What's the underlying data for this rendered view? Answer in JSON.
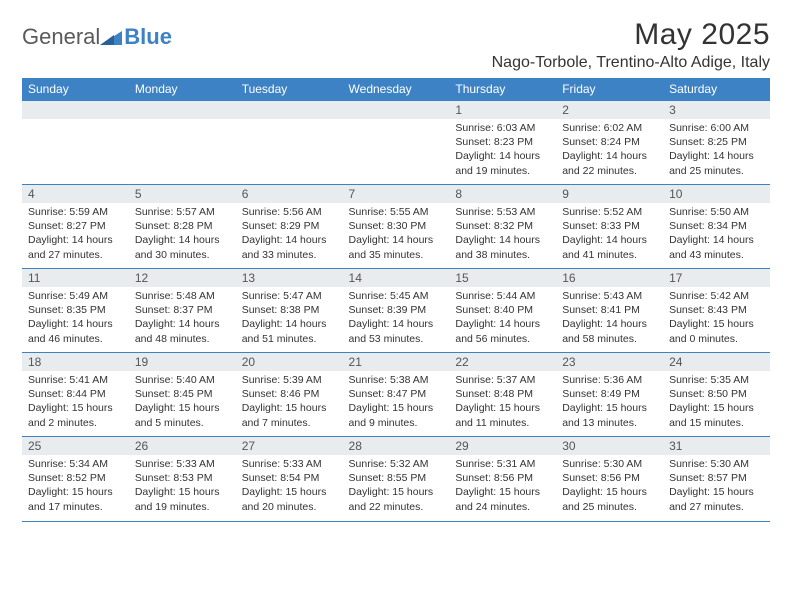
{
  "brand": {
    "part1": "General",
    "part2": "Blue"
  },
  "colors": {
    "accent": "#3d82c4",
    "header_text": "#ffffff",
    "daynum_bg": "#e9ecef",
    "text": "#333333"
  },
  "title": "May 2025",
  "location": "Nago-Torbole, Trentino-Alto Adige, Italy",
  "weekdays": [
    "Sunday",
    "Monday",
    "Tuesday",
    "Wednesday",
    "Thursday",
    "Friday",
    "Saturday"
  ],
  "weeks": [
    [
      null,
      null,
      null,
      null,
      {
        "n": "1",
        "sr": "Sunrise: 6:03 AM",
        "ss": "Sunset: 8:23 PM",
        "d1": "Daylight: 14 hours",
        "d2": "and 19 minutes."
      },
      {
        "n": "2",
        "sr": "Sunrise: 6:02 AM",
        "ss": "Sunset: 8:24 PM",
        "d1": "Daylight: 14 hours",
        "d2": "and 22 minutes."
      },
      {
        "n": "3",
        "sr": "Sunrise: 6:00 AM",
        "ss": "Sunset: 8:25 PM",
        "d1": "Daylight: 14 hours",
        "d2": "and 25 minutes."
      }
    ],
    [
      {
        "n": "4",
        "sr": "Sunrise: 5:59 AM",
        "ss": "Sunset: 8:27 PM",
        "d1": "Daylight: 14 hours",
        "d2": "and 27 minutes."
      },
      {
        "n": "5",
        "sr": "Sunrise: 5:57 AM",
        "ss": "Sunset: 8:28 PM",
        "d1": "Daylight: 14 hours",
        "d2": "and 30 minutes."
      },
      {
        "n": "6",
        "sr": "Sunrise: 5:56 AM",
        "ss": "Sunset: 8:29 PM",
        "d1": "Daylight: 14 hours",
        "d2": "and 33 minutes."
      },
      {
        "n": "7",
        "sr": "Sunrise: 5:55 AM",
        "ss": "Sunset: 8:30 PM",
        "d1": "Daylight: 14 hours",
        "d2": "and 35 minutes."
      },
      {
        "n": "8",
        "sr": "Sunrise: 5:53 AM",
        "ss": "Sunset: 8:32 PM",
        "d1": "Daylight: 14 hours",
        "d2": "and 38 minutes."
      },
      {
        "n": "9",
        "sr": "Sunrise: 5:52 AM",
        "ss": "Sunset: 8:33 PM",
        "d1": "Daylight: 14 hours",
        "d2": "and 41 minutes."
      },
      {
        "n": "10",
        "sr": "Sunrise: 5:50 AM",
        "ss": "Sunset: 8:34 PM",
        "d1": "Daylight: 14 hours",
        "d2": "and 43 minutes."
      }
    ],
    [
      {
        "n": "11",
        "sr": "Sunrise: 5:49 AM",
        "ss": "Sunset: 8:35 PM",
        "d1": "Daylight: 14 hours",
        "d2": "and 46 minutes."
      },
      {
        "n": "12",
        "sr": "Sunrise: 5:48 AM",
        "ss": "Sunset: 8:37 PM",
        "d1": "Daylight: 14 hours",
        "d2": "and 48 minutes."
      },
      {
        "n": "13",
        "sr": "Sunrise: 5:47 AM",
        "ss": "Sunset: 8:38 PM",
        "d1": "Daylight: 14 hours",
        "d2": "and 51 minutes."
      },
      {
        "n": "14",
        "sr": "Sunrise: 5:45 AM",
        "ss": "Sunset: 8:39 PM",
        "d1": "Daylight: 14 hours",
        "d2": "and 53 minutes."
      },
      {
        "n": "15",
        "sr": "Sunrise: 5:44 AM",
        "ss": "Sunset: 8:40 PM",
        "d1": "Daylight: 14 hours",
        "d2": "and 56 minutes."
      },
      {
        "n": "16",
        "sr": "Sunrise: 5:43 AM",
        "ss": "Sunset: 8:41 PM",
        "d1": "Daylight: 14 hours",
        "d2": "and 58 minutes."
      },
      {
        "n": "17",
        "sr": "Sunrise: 5:42 AM",
        "ss": "Sunset: 8:43 PM",
        "d1": "Daylight: 15 hours",
        "d2": "and 0 minutes."
      }
    ],
    [
      {
        "n": "18",
        "sr": "Sunrise: 5:41 AM",
        "ss": "Sunset: 8:44 PM",
        "d1": "Daylight: 15 hours",
        "d2": "and 2 minutes."
      },
      {
        "n": "19",
        "sr": "Sunrise: 5:40 AM",
        "ss": "Sunset: 8:45 PM",
        "d1": "Daylight: 15 hours",
        "d2": "and 5 minutes."
      },
      {
        "n": "20",
        "sr": "Sunrise: 5:39 AM",
        "ss": "Sunset: 8:46 PM",
        "d1": "Daylight: 15 hours",
        "d2": "and 7 minutes."
      },
      {
        "n": "21",
        "sr": "Sunrise: 5:38 AM",
        "ss": "Sunset: 8:47 PM",
        "d1": "Daylight: 15 hours",
        "d2": "and 9 minutes."
      },
      {
        "n": "22",
        "sr": "Sunrise: 5:37 AM",
        "ss": "Sunset: 8:48 PM",
        "d1": "Daylight: 15 hours",
        "d2": "and 11 minutes."
      },
      {
        "n": "23",
        "sr": "Sunrise: 5:36 AM",
        "ss": "Sunset: 8:49 PM",
        "d1": "Daylight: 15 hours",
        "d2": "and 13 minutes."
      },
      {
        "n": "24",
        "sr": "Sunrise: 5:35 AM",
        "ss": "Sunset: 8:50 PM",
        "d1": "Daylight: 15 hours",
        "d2": "and 15 minutes."
      }
    ],
    [
      {
        "n": "25",
        "sr": "Sunrise: 5:34 AM",
        "ss": "Sunset: 8:52 PM",
        "d1": "Daylight: 15 hours",
        "d2": "and 17 minutes."
      },
      {
        "n": "26",
        "sr": "Sunrise: 5:33 AM",
        "ss": "Sunset: 8:53 PM",
        "d1": "Daylight: 15 hours",
        "d2": "and 19 minutes."
      },
      {
        "n": "27",
        "sr": "Sunrise: 5:33 AM",
        "ss": "Sunset: 8:54 PM",
        "d1": "Daylight: 15 hours",
        "d2": "and 20 minutes."
      },
      {
        "n": "28",
        "sr": "Sunrise: 5:32 AM",
        "ss": "Sunset: 8:55 PM",
        "d1": "Daylight: 15 hours",
        "d2": "and 22 minutes."
      },
      {
        "n": "29",
        "sr": "Sunrise: 5:31 AM",
        "ss": "Sunset: 8:56 PM",
        "d1": "Daylight: 15 hours",
        "d2": "and 24 minutes."
      },
      {
        "n": "30",
        "sr": "Sunrise: 5:30 AM",
        "ss": "Sunset: 8:56 PM",
        "d1": "Daylight: 15 hours",
        "d2": "and 25 minutes."
      },
      {
        "n": "31",
        "sr": "Sunrise: 5:30 AM",
        "ss": "Sunset: 8:57 PM",
        "d1": "Daylight: 15 hours",
        "d2": "and 27 minutes."
      }
    ]
  ]
}
